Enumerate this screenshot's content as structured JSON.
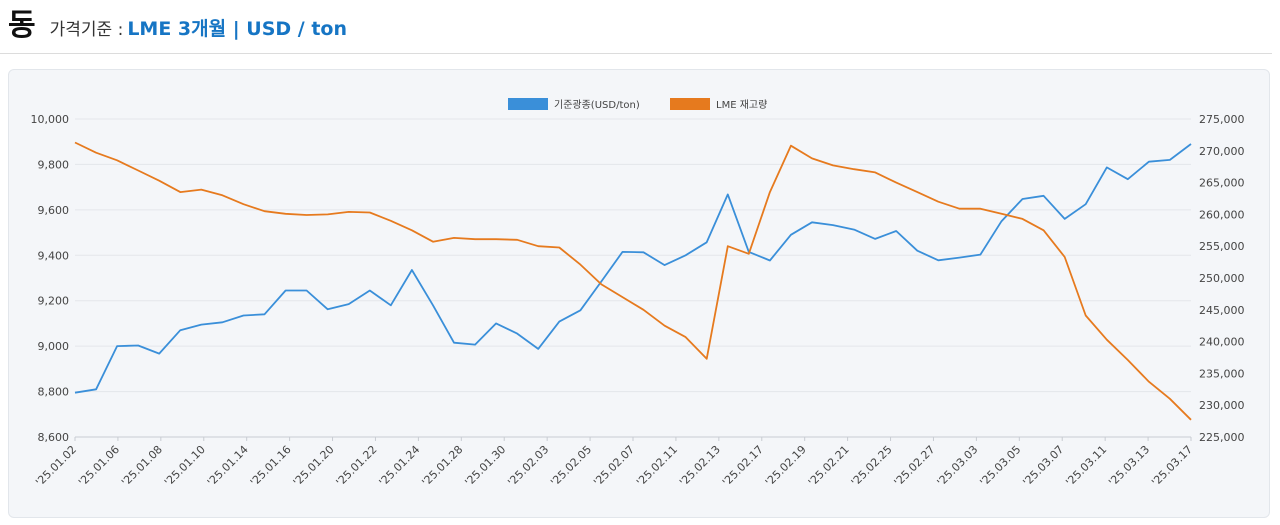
{
  "header": {
    "metal": "동",
    "subtitle": "가격기준 :",
    "spec": "LME 3개월 | USD / ton"
  },
  "chart_data": {
    "type": "line",
    "legend": [
      "기준광종(USD/ton)",
      "LME 재고량"
    ],
    "legend_position": "top-center",
    "colors": [
      "#3a8fd9",
      "#e67a1e"
    ],
    "x_tick_labels": [
      "'25.01.02",
      "'25.01.06",
      "'25.01.08",
      "'25.01.10",
      "'25.01.14",
      "'25.01.16",
      "'25.01.20",
      "'25.01.22",
      "'25.01.24",
      "'25.01.28",
      "'25.01.30",
      "'25.02.03",
      "'25.02.05",
      "'25.02.07",
      "'25.02.11",
      "'25.02.13",
      "'25.02.17",
      "'25.02.19",
      "'25.02.21",
      "'25.02.25",
      "'25.02.27",
      "'25.03.03",
      "'25.03.05",
      "'25.03.07",
      "'25.03.11",
      "'25.03.13",
      "'25.03.17"
    ],
    "y_left": {
      "min": 8600,
      "max": 10000,
      "ticks": [
        "8,600",
        "8,800",
        "9,000",
        "9,200",
        "9,400",
        "9,600",
        "9,800",
        "10,000"
      ]
    },
    "y_right": {
      "min": 225000,
      "max": 275000,
      "ticks": [
        "225,000",
        "230,000",
        "235,000",
        "240,000",
        "245,000",
        "250,000",
        "255,000",
        "260,000",
        "265,000",
        "270,000",
        "275,000"
      ]
    },
    "grid": true,
    "series": [
      {
        "name": "기준광종(USD/ton)",
        "axis": "left",
        "values": [
          8795,
          8810,
          9000,
          9003,
          8967,
          9070,
          9095,
          9105,
          9135,
          9140,
          9245,
          9245,
          9162,
          9185,
          9245,
          9180,
          9335,
          9180,
          9015,
          9007,
          9100,
          9055,
          8988,
          9108,
          9158,
          9285,
          9415,
          9413,
          9357,
          9400,
          9457,
          9668,
          9415,
          9377,
          9490,
          9545,
          9533,
          9513,
          9472,
          9507,
          9420,
          9378,
          9390,
          9403,
          9550,
          9648,
          9662,
          9560,
          9625,
          9787,
          9735,
          9812,
          9820,
          9890
        ]
      },
      {
        "name": "LME 재고량",
        "axis": "right",
        "values": [
          271300,
          269700,
          268500,
          266900,
          265300,
          263500,
          263900,
          263000,
          261600,
          260500,
          260100,
          259900,
          260000,
          260400,
          260300,
          259000,
          257500,
          255700,
          256300,
          256100,
          256100,
          256000,
          255000,
          254800,
          252100,
          249000,
          247000,
          245000,
          242500,
          240700,
          237300,
          255000,
          253800,
          263500,
          270800,
          268800,
          267700,
          267100,
          266600,
          265000,
          263500,
          262000,
          260900,
          260900,
          260100,
          259300,
          257500,
          253300,
          244100,
          240300,
          237100,
          233700,
          231000,
          227700
        ]
      }
    ]
  }
}
